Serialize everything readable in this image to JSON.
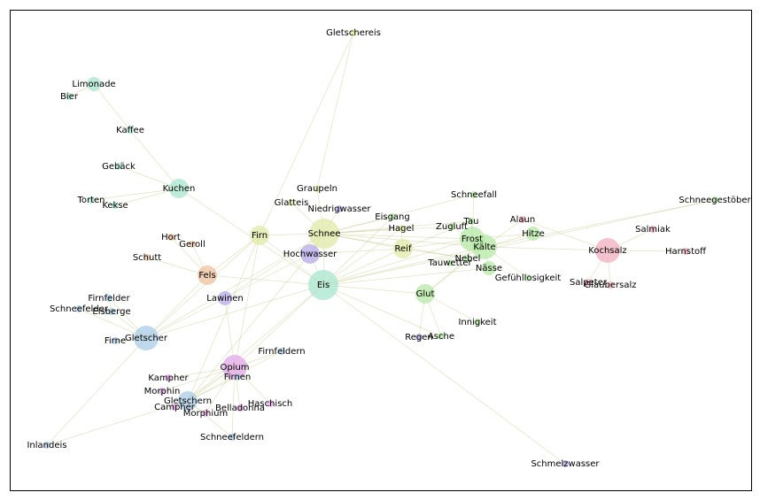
{
  "palette": {
    "mint": "#a8e6cf",
    "yellow": "#e0eaa6",
    "green": "#b6e8a6",
    "purple": "#b6aae8",
    "blue": "#aacbe6",
    "orange": "#eec1a0",
    "pink": "#f2aebf",
    "magenta": "#e3a8e6",
    "edge": "#c8cc92"
  },
  "nodes": [
    {
      "id": "Gletschereis",
      "label": "Gletschereis",
      "group": "yellow",
      "size": 1
    },
    {
      "id": "Limonade",
      "label": "Limonade",
      "group": "mint",
      "size": 2
    },
    {
      "id": "Bier",
      "label": "Bier",
      "group": "mint",
      "size": 1
    },
    {
      "id": "Kaffee",
      "label": "Kaffee",
      "group": "mint",
      "size": 1
    },
    {
      "id": "Gebäck",
      "label": "Gebäck",
      "group": "mint",
      "size": 1
    },
    {
      "id": "Kuchen",
      "label": "Kuchen",
      "group": "mint",
      "size": 3
    },
    {
      "id": "Torten",
      "label": "Torten",
      "group": "mint",
      "size": 1
    },
    {
      "id": "Kekse",
      "label": "Kekse",
      "group": "mint",
      "size": 1
    },
    {
      "id": "Graupeln",
      "label": "Graupeln",
      "group": "yellow",
      "size": 1
    },
    {
      "id": "Glatteis",
      "label": "Glatteis",
      "group": "yellow",
      "size": 1
    },
    {
      "id": "Niedrigwasser",
      "label": "Niedrigwasser",
      "group": "purple",
      "size": 1
    },
    {
      "id": "Eisgang",
      "label": "Eisgang",
      "group": "green",
      "size": 1
    },
    {
      "id": "Schneefall",
      "label": "Schneefall",
      "group": "green",
      "size": 1
    },
    {
      "id": "Schneegestöber",
      "label": "Schneegestöber",
      "group": "green",
      "size": 1
    },
    {
      "id": "Tau",
      "label": "Tau",
      "group": "green",
      "size": 1
    },
    {
      "id": "Alaun",
      "label": "Alaun",
      "group": "pink",
      "size": 1
    },
    {
      "id": "Hort",
      "label": "Hort",
      "group": "orange",
      "size": 1
    },
    {
      "id": "Firn",
      "label": "Firn",
      "group": "yellow",
      "size": 3
    },
    {
      "id": "Schnee",
      "label": "Schnee",
      "group": "yellow",
      "size": 5
    },
    {
      "id": "Hagel",
      "label": "Hagel",
      "group": "yellow",
      "size": 1
    },
    {
      "id": "Zugluft",
      "label": "Zugluft",
      "group": "green",
      "size": 1
    },
    {
      "id": "Frost",
      "label": "Frost",
      "group": "green",
      "size": 4
    },
    {
      "id": "Hitze",
      "label": "Hitze",
      "group": "green",
      "size": 2
    },
    {
      "id": "Salmiak",
      "label": "Salmiak",
      "group": "pink",
      "size": 1
    },
    {
      "id": "Geroll",
      "label": "Geroll",
      "group": "orange",
      "size": 1
    },
    {
      "id": "Kälte",
      "label": "Kälte",
      "group": "green",
      "size": 4
    },
    {
      "id": "Kochsalz",
      "label": "Kochsalz",
      "group": "pink",
      "size": 4
    },
    {
      "id": "Harnstoff",
      "label": "Harnstoff",
      "group": "pink",
      "size": 1
    },
    {
      "id": "Schutt",
      "label": "Schutt",
      "group": "orange",
      "size": 1
    },
    {
      "id": "Hochwasser",
      "label": "Hochwasser",
      "group": "purple",
      "size": 3
    },
    {
      "id": "Reif",
      "label": "Reif",
      "group": "yellow",
      "size": 3
    },
    {
      "id": "Nebel",
      "label": "Nebel",
      "group": "green",
      "size": 1
    },
    {
      "id": "Tauwetter",
      "label": "Tauwetter",
      "group": "green",
      "size": 1
    },
    {
      "id": "Nässe",
      "label": "Nässe",
      "group": "green",
      "size": 2
    },
    {
      "id": "Fels",
      "label": "Fels",
      "group": "orange",
      "size": 3
    },
    {
      "id": "Gefühllosigkeit",
      "label": "Gefühllosigkeit",
      "group": "green",
      "size": 1
    },
    {
      "id": "Eis",
      "label": "Eis",
      "group": "mint",
      "size": 5
    },
    {
      "id": "Salpeter",
      "label": "Salpeter",
      "group": "pink",
      "size": 1
    },
    {
      "id": "Glaubersalz",
      "label": "Glaubersalz",
      "group": "pink",
      "size": 1
    },
    {
      "id": "Firnfelder",
      "label": "Firnfelder",
      "group": "blue",
      "size": 1
    },
    {
      "id": "Lawinen",
      "label": "Lawinen",
      "group": "purple",
      "size": 2
    },
    {
      "id": "Glut",
      "label": "Glut",
      "group": "green",
      "size": 3
    },
    {
      "id": "Schneefelder",
      "label": "Schneefelder",
      "group": "blue",
      "size": 1
    },
    {
      "id": "Eisberge",
      "label": "Eisberge",
      "group": "blue",
      "size": 1
    },
    {
      "id": "Innigkeit",
      "label": "Innigkeit",
      "group": "green",
      "size": 1
    },
    {
      "id": "Firne",
      "label": "Firne",
      "group": "blue",
      "size": 1
    },
    {
      "id": "Gletscher",
      "label": "Gletscher",
      "group": "blue",
      "size": 4
    },
    {
      "id": "Regen",
      "label": "Regen",
      "group": "purple",
      "size": 1
    },
    {
      "id": "Asche",
      "label": "Asche",
      "group": "green",
      "size": 1
    },
    {
      "id": "Firnfeldern",
      "label": "Firnfeldern",
      "group": "blue",
      "size": 1
    },
    {
      "id": "Opium",
      "label": "Opium",
      "group": "magenta",
      "size": 4
    },
    {
      "id": "Kampher",
      "label": "Kampher",
      "group": "magenta",
      "size": 1
    },
    {
      "id": "Firnen",
      "label": "Firnen",
      "group": "blue",
      "size": 1
    },
    {
      "id": "Morphin",
      "label": "Morphin",
      "group": "magenta",
      "size": 1
    },
    {
      "id": "Gletschern",
      "label": "Gletschern",
      "group": "blue",
      "size": 3
    },
    {
      "id": "Haschisch",
      "label": "Haschisch",
      "group": "magenta",
      "size": 1
    },
    {
      "id": "Campher",
      "label": "Campher",
      "group": "magenta",
      "size": 1
    },
    {
      "id": "Belladonna",
      "label": "Belladonna",
      "group": "magenta",
      "size": 1
    },
    {
      "id": "Morphium",
      "label": "Morphium",
      "group": "magenta",
      "size": 1
    },
    {
      "id": "Schneefeldern",
      "label": "Schneefeldern",
      "group": "blue",
      "size": 1
    },
    {
      "id": "Inlandeis",
      "label": "Inlandeis",
      "group": "blue",
      "size": 1
    },
    {
      "id": "Schmelzwasser",
      "label": "Schmelzwasser",
      "group": "purple",
      "size": 1
    }
  ],
  "edges": [
    [
      "Limonade",
      "Bier"
    ],
    [
      "Limonade",
      "Kaffee"
    ],
    [
      "Kaffee",
      "Kuchen"
    ],
    [
      "Gebäck",
      "Kuchen"
    ],
    [
      "Kuchen",
      "Torten"
    ],
    [
      "Kuchen",
      "Kekse"
    ],
    [
      "Kuchen",
      "Eis"
    ],
    [
      "Torten",
      "Kekse"
    ],
    [
      "Gletschereis",
      "Graupeln"
    ],
    [
      "Gletschereis",
      "Firn"
    ],
    [
      "Graupeln",
      "Schnee"
    ],
    [
      "Glatteis",
      "Schnee"
    ],
    [
      "Niedrigwasser",
      "Hochwasser"
    ],
    [
      "Eisgang",
      "Eis"
    ],
    [
      "Eisgang",
      "Schnee"
    ],
    [
      "Schnee",
      "Hagel"
    ],
    [
      "Schnee",
      "Reif"
    ],
    [
      "Schnee",
      "Frost"
    ],
    [
      "Schnee",
      "Kälte"
    ],
    [
      "Schnee",
      "Zugluft"
    ],
    [
      "Schnee",
      "Tau"
    ],
    [
      "Schnee",
      "Nebel"
    ],
    [
      "Schnee",
      "Eis"
    ],
    [
      "Schnee",
      "Firn"
    ],
    [
      "Schnee",
      "Hochwasser"
    ],
    [
      "Schnee",
      "Lawinen"
    ],
    [
      "Schnee",
      "Schneefall"
    ],
    [
      "Schnee",
      "Gletscher"
    ],
    [
      "Eis",
      "Frost"
    ],
    [
      "Eis",
      "Kälte"
    ],
    [
      "Eis",
      "Reif"
    ],
    [
      "Eis",
      "Hagel"
    ],
    [
      "Eis",
      "Glut"
    ],
    [
      "Eis",
      "Firn"
    ],
    [
      "Eis",
      "Fels"
    ],
    [
      "Eis",
      "Gletscher"
    ],
    [
      "Eis",
      "Hochwasser"
    ],
    [
      "Eis",
      "Opium"
    ],
    [
      "Eis",
      "Schmelzwasser"
    ],
    [
      "Eis",
      "Asche"
    ],
    [
      "Eis",
      "Nässe"
    ],
    [
      "Eis",
      "Schneegestöber"
    ],
    [
      "Eis",
      "Gletschern"
    ],
    [
      "Frost",
      "Kälte"
    ],
    [
      "Frost",
      "Hitze"
    ],
    [
      "Frost",
      "Tau"
    ],
    [
      "Frost",
      "Zugluft"
    ],
    [
      "Frost",
      "Nebel"
    ],
    [
      "Frost",
      "Schneefall"
    ],
    [
      "Frost",
      "Reif"
    ],
    [
      "Kälte",
      "Hitze"
    ],
    [
      "Kälte",
      "Nässe"
    ],
    [
      "Kälte",
      "Gefühllosigkeit"
    ],
    [
      "Kälte",
      "Kochsalz"
    ],
    [
      "Kälte",
      "Glut"
    ],
    [
      "Kälte",
      "Tauwetter"
    ],
    [
      "Kälte",
      "Alaun"
    ],
    [
      "Kälte",
      "Schneegestöber"
    ],
    [
      "Kochsalz",
      "Salmiak"
    ],
    [
      "Kochsalz",
      "Harnstoff"
    ],
    [
      "Kochsalz",
      "Salpeter"
    ],
    [
      "Kochsalz",
      "Glaubersalz"
    ],
    [
      "Kochsalz",
      "Alaun"
    ],
    [
      "Salpeter",
      "Glaubersalz"
    ],
    [
      "Reif",
      "Tau"
    ],
    [
      "Reif",
      "Nebel"
    ],
    [
      "Reif",
      "Hagel"
    ],
    [
      "Glut",
      "Asche"
    ],
    [
      "Glut",
      "Innigkeit"
    ],
    [
      "Glut",
      "Nebel"
    ],
    [
      "Regen",
      "Asche"
    ],
    [
      "Glut",
      "Regen"
    ],
    [
      "Fels",
      "Hort"
    ],
    [
      "Fels",
      "Geroll"
    ],
    [
      "Fels",
      "Schutt"
    ],
    [
      "Fels",
      "Firn"
    ],
    [
      "Fels",
      "Gletscher"
    ],
    [
      "Hort",
      "Geroll"
    ],
    [
      "Firn",
      "Gletscher"
    ],
    [
      "Firn",
      "Opium"
    ],
    [
      "Firn",
      "Gletschern"
    ],
    [
      "Gletscher",
      "Firnfelder"
    ],
    [
      "Gletscher",
      "Schneefelder"
    ],
    [
      "Gletscher",
      "Eisberge"
    ],
    [
      "Gletscher",
      "Firne"
    ],
    [
      "Gletscher",
      "Inlandeis"
    ],
    [
      "Gletscher",
      "Lawinen"
    ],
    [
      "Firnfelder",
      "Eisberge"
    ],
    [
      "Schneefelder",
      "Eisberge"
    ],
    [
      "Opium",
      "Kampher"
    ],
    [
      "Opium",
      "Firnen"
    ],
    [
      "Opium",
      "Morphin"
    ],
    [
      "Opium",
      "Gletschern"
    ],
    [
      "Opium",
      "Haschisch"
    ],
    [
      "Opium",
      "Campher"
    ],
    [
      "Opium",
      "Belladonna"
    ],
    [
      "Opium",
      "Morphium"
    ],
    [
      "Opium",
      "Firnfeldern"
    ],
    [
      "Opium",
      "Lawinen"
    ],
    [
      "Opium",
      "Schneefeldern"
    ],
    [
      "Gletschern",
      "Firnen"
    ],
    [
      "Gletschern",
      "Inlandeis"
    ],
    [
      "Gletschern",
      "Schneefeldern"
    ],
    [
      "Gletschern",
      "Campher"
    ],
    [
      "Gletschern",
      "Morphium"
    ],
    [
      "Gletschern",
      "Firnfeldern"
    ],
    [
      "Gletschern",
      "Hochwasser"
    ],
    [
      "Hochwasser",
      "Lawinen"
    ],
    [
      "Hochwasser",
      "Reif"
    ]
  ]
}
